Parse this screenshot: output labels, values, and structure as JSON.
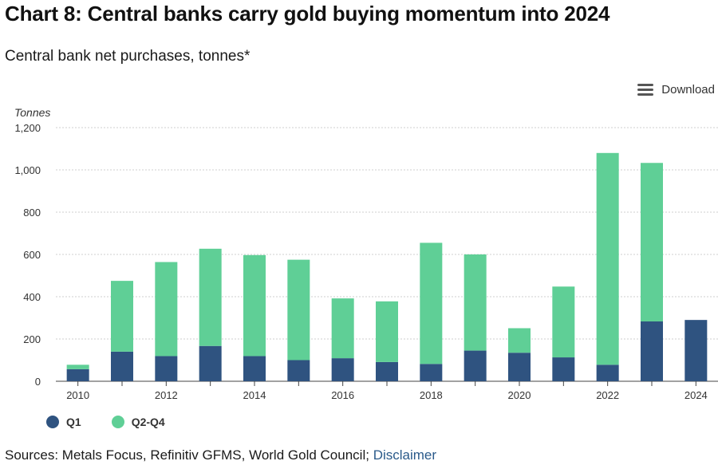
{
  "header": {
    "title": "Chart 8: Central banks carry gold buying momentum into 2024",
    "subtitle": "Central bank net purchases, tonnes*"
  },
  "toolbar": {
    "download_label": "Download"
  },
  "footer": {
    "sources_text": "Sources: Metals Focus, Refinitiv GFMS, World Gold Council;",
    "disclaimer_label": "Disclaimer"
  },
  "colors": {
    "q1": "#2f5380",
    "q2q4": "#5fcf96",
    "grid": "#cfcfcf",
    "axis": "#444444"
  },
  "chart_data": {
    "type": "bar",
    "stacked": true,
    "ylabel": "Tonnes",
    "xlabel": "",
    "ylim": [
      0,
      1200
    ],
    "yticks": [
      "0",
      "200",
      "400",
      "600",
      "800",
      "1,000",
      "1,200"
    ],
    "categories": [
      "2010",
      "2011",
      "2012",
      "2013",
      "2014",
      "2015",
      "2016",
      "2017",
      "2018",
      "2019",
      "2020",
      "2021",
      "2022",
      "2023",
      "2024"
    ],
    "xtick_labels": [
      "2010",
      "",
      "2012",
      "",
      "2014",
      "",
      "2016",
      "",
      "2018",
      "",
      "2020",
      "",
      "2022",
      "",
      "2024"
    ],
    "series": [
      {
        "name": "Q1",
        "values": [
          57,
          140,
          119,
          167,
          119,
          100,
          109,
          91,
          82,
          145,
          135,
          113,
          78,
          283,
          290
        ]
      },
      {
        "name": "Q2-Q4",
        "values": [
          21,
          335,
          445,
          460,
          478,
          475,
          283,
          287,
          573,
          455,
          116,
          335,
          1002,
          750,
          0
        ]
      }
    ],
    "legend_position": "bottom-left"
  }
}
